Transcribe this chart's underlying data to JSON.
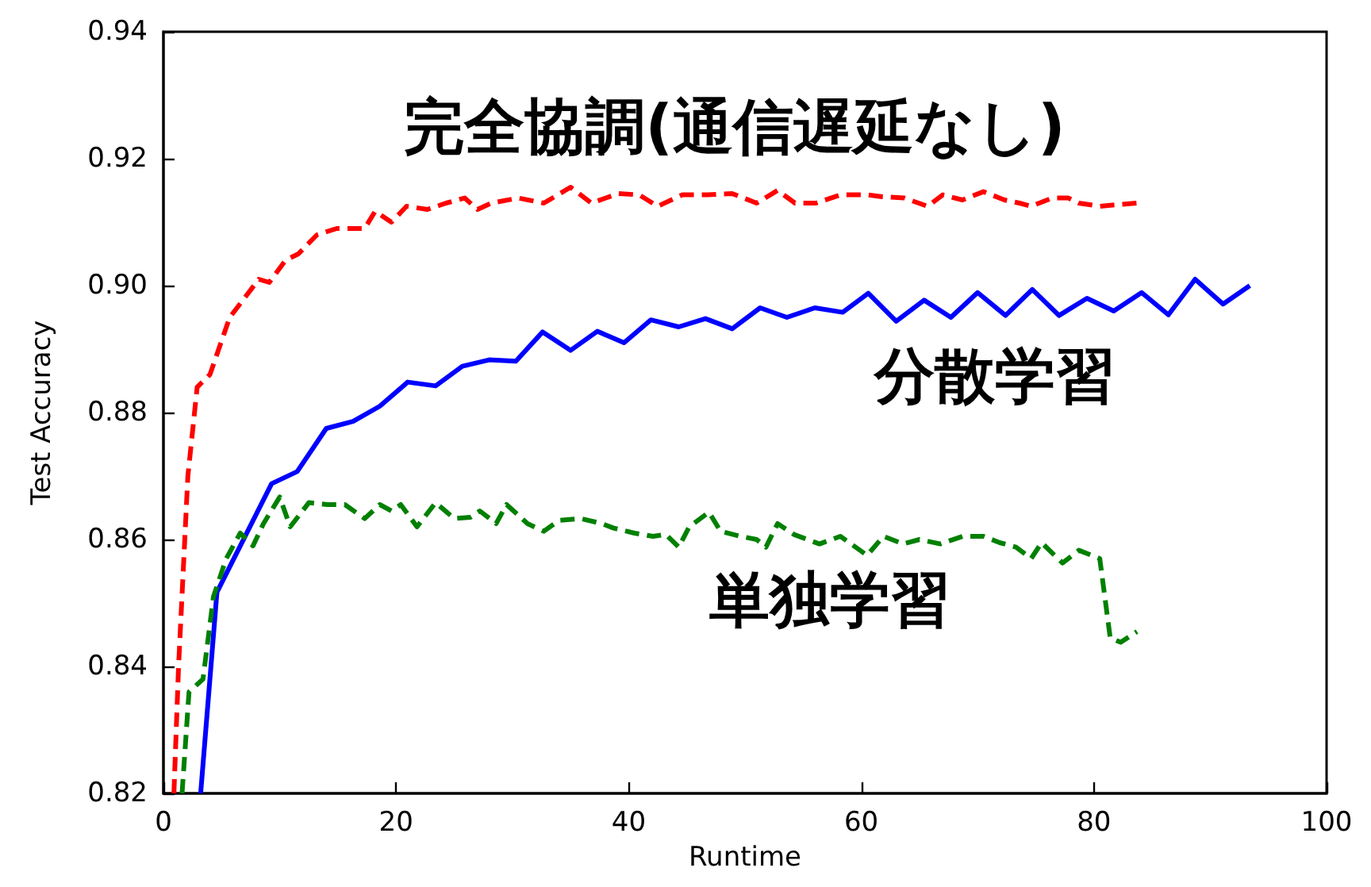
{
  "chart_data": {
    "type": "line",
    "xlabel": "Runtime",
    "ylabel": "Test Accuracy",
    "xlim": [
      0,
      100
    ],
    "ylim": [
      0.82,
      0.94
    ],
    "xticks": [
      0,
      20,
      40,
      60,
      80,
      100
    ],
    "yticks": [
      0.82,
      0.84,
      0.86,
      0.88,
      {
        "value": 0.9,
        "label": "0.90"
      },
      0.92,
      0.94
    ],
    "grid": false,
    "legend": false,
    "marker": "none",
    "series": [
      {
        "name": "完全協調(通信遅延なし)",
        "color": "#ff0000",
        "line_style": "dashed",
        "x": [
          0.9,
          1.3,
          2.1,
          2.9,
          4,
          5.7,
          8.2,
          9.1,
          10.5,
          11.6,
          13.2,
          14.9,
          17.3,
          18.2,
          19.6,
          20.9,
          22.7,
          24.3,
          25.9,
          27,
          28.2,
          30.5,
          32.7,
          35,
          36.8,
          39.1,
          40.9,
          42.5,
          44.6,
          46.8,
          48.9,
          51,
          52.8,
          54.3,
          56.1,
          58.2,
          60.5,
          61.8,
          63.7,
          65.7,
          67,
          68.7,
          70.5,
          72.3,
          73.6,
          74.6,
          76.4,
          77.8,
          78.7,
          80.5,
          82.3,
          83.7
        ],
        "values": [
          0.82,
          0.84,
          0.87,
          0.884,
          0.886,
          0.895,
          0.901,
          0.9005,
          0.904,
          0.905,
          0.908,
          0.909,
          0.909,
          0.9117,
          0.91,
          0.9125,
          0.912,
          0.913,
          0.9138,
          0.912,
          0.913,
          0.9138,
          0.913,
          0.9155,
          0.913,
          0.9145,
          0.9143,
          0.9125,
          0.9143,
          0.9143,
          0.9145,
          0.913,
          0.915,
          0.913,
          0.913,
          0.9143,
          0.9143,
          0.914,
          0.9138,
          0.9125,
          0.9143,
          0.9135,
          0.9148,
          0.9135,
          0.913,
          0.9125,
          0.9138,
          0.9138,
          0.913,
          0.9125,
          0.9128,
          0.913
        ]
      },
      {
        "name": "分散学習",
        "color": "#0000ff",
        "line_style": "solid",
        "x": [
          3.2,
          4.6,
          9.3,
          11.5,
          14,
          16.3,
          18.6,
          21,
          23.4,
          25.7,
          28,
          30.3,
          32.6,
          35,
          37.3,
          39.6,
          41.9,
          44.3,
          46.6,
          48.9,
          51.3,
          53.6,
          56,
          58.4,
          60.6,
          63,
          65.4,
          67.7,
          70,
          72.4,
          74.7,
          77,
          79.4,
          81.7,
          84.1,
          86.4,
          88.7,
          91.1,
          93.4
        ],
        "values": [
          0.82,
          0.8517,
          0.8688,
          0.8707,
          0.8775,
          0.8786,
          0.881,
          0.8848,
          0.8842,
          0.8873,
          0.8883,
          0.8881,
          0.8927,
          0.8898,
          0.8928,
          0.891,
          0.8946,
          0.8935,
          0.8948,
          0.8932,
          0.8965,
          0.895,
          0.8965,
          0.8958,
          0.8988,
          0.8944,
          0.8977,
          0.895,
          0.8989,
          0.8953,
          0.8994,
          0.8953,
          0.898,
          0.896,
          0.8989,
          0.8954,
          0.901,
          0.8971,
          0.9
        ]
      },
      {
        "name": "単独学習",
        "color": "#008000",
        "line_style": "dashed",
        "x": [
          1.6,
          2.2,
          3.4,
          4.3,
          5.4,
          6.6,
          7.7,
          8.6,
          10,
          10.9,
          12.5,
          14.1,
          15.6,
          17.3,
          18.6,
          19.6,
          20.4,
          21.8,
          23.4,
          25,
          26.4,
          27.2,
          28.6,
          29.5,
          31.3,
          32.7,
          34,
          35.9,
          37.7,
          38.7,
          40.5,
          42.1,
          43.2,
          44.3,
          45.2,
          46.9,
          47.9,
          49.6,
          51,
          51.8,
          52.8,
          54.2,
          56.4,
          58.2,
          60.5,
          61.9,
          63.6,
          65,
          66.8,
          68.7,
          70.5,
          71.9,
          73.3,
          74.6,
          75.5,
          77.3,
          78.7,
          80.5,
          81.4,
          82.3,
          83.7
        ],
        "values": [
          0.82,
          0.836,
          0.838,
          0.851,
          0.857,
          0.861,
          0.859,
          0.8625,
          0.8667,
          0.862,
          0.8658,
          0.8655,
          0.8655,
          0.8633,
          0.8655,
          0.8645,
          0.8655,
          0.862,
          0.8658,
          0.8633,
          0.8635,
          0.8645,
          0.8625,
          0.8655,
          0.8625,
          0.8613,
          0.863,
          0.8633,
          0.8625,
          0.8618,
          0.861,
          0.8605,
          0.8608,
          0.8588,
          0.862,
          0.8643,
          0.8613,
          0.8605,
          0.86,
          0.8588,
          0.8625,
          0.8608,
          0.8593,
          0.8605,
          0.8575,
          0.8605,
          0.8593,
          0.86,
          0.8593,
          0.8605,
          0.8605,
          0.8595,
          0.8588,
          0.857,
          0.8595,
          0.8563,
          0.8583,
          0.857,
          0.8445,
          0.8438,
          0.8455
        ]
      }
    ]
  }
}
